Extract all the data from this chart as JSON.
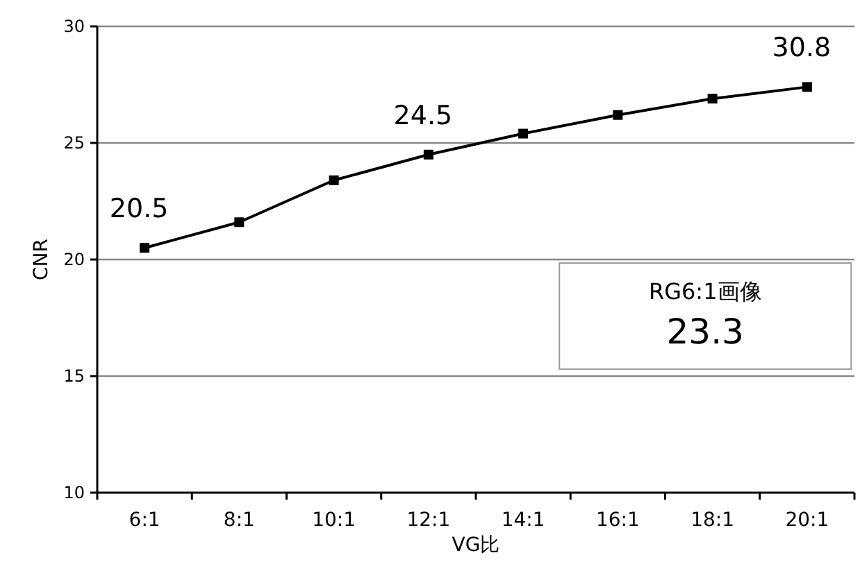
{
  "chart_data": {
    "type": "line",
    "xlabel": "VG比",
    "ylabel": "CNR",
    "categories": [
      "6:1",
      "8:1",
      "10:1",
      "12:1",
      "14:1",
      "16:1",
      "18:1",
      "20:1"
    ],
    "series": [
      {
        "color": "#000000",
        "values": [
          20.5,
          21.6,
          23.4,
          24.5,
          25.4,
          26.2,
          26.9,
          27.4
        ]
      }
    ],
    "ylim": [
      10,
      30
    ],
    "yticks": [
      10,
      15,
      20,
      25,
      30
    ],
    "grid": "y",
    "marker": "square",
    "line_style": "solid",
    "annotations": [
      {
        "text": "20.5",
        "x": "6:1",
        "y": 20.5
      },
      {
        "text": "24.5",
        "x": "12:1",
        "y": 24.5
      },
      {
        "text": "30.8",
        "x": "20:1",
        "y": 27.4
      },
      "RG6:1画像",
      "23.3"
    ]
  }
}
